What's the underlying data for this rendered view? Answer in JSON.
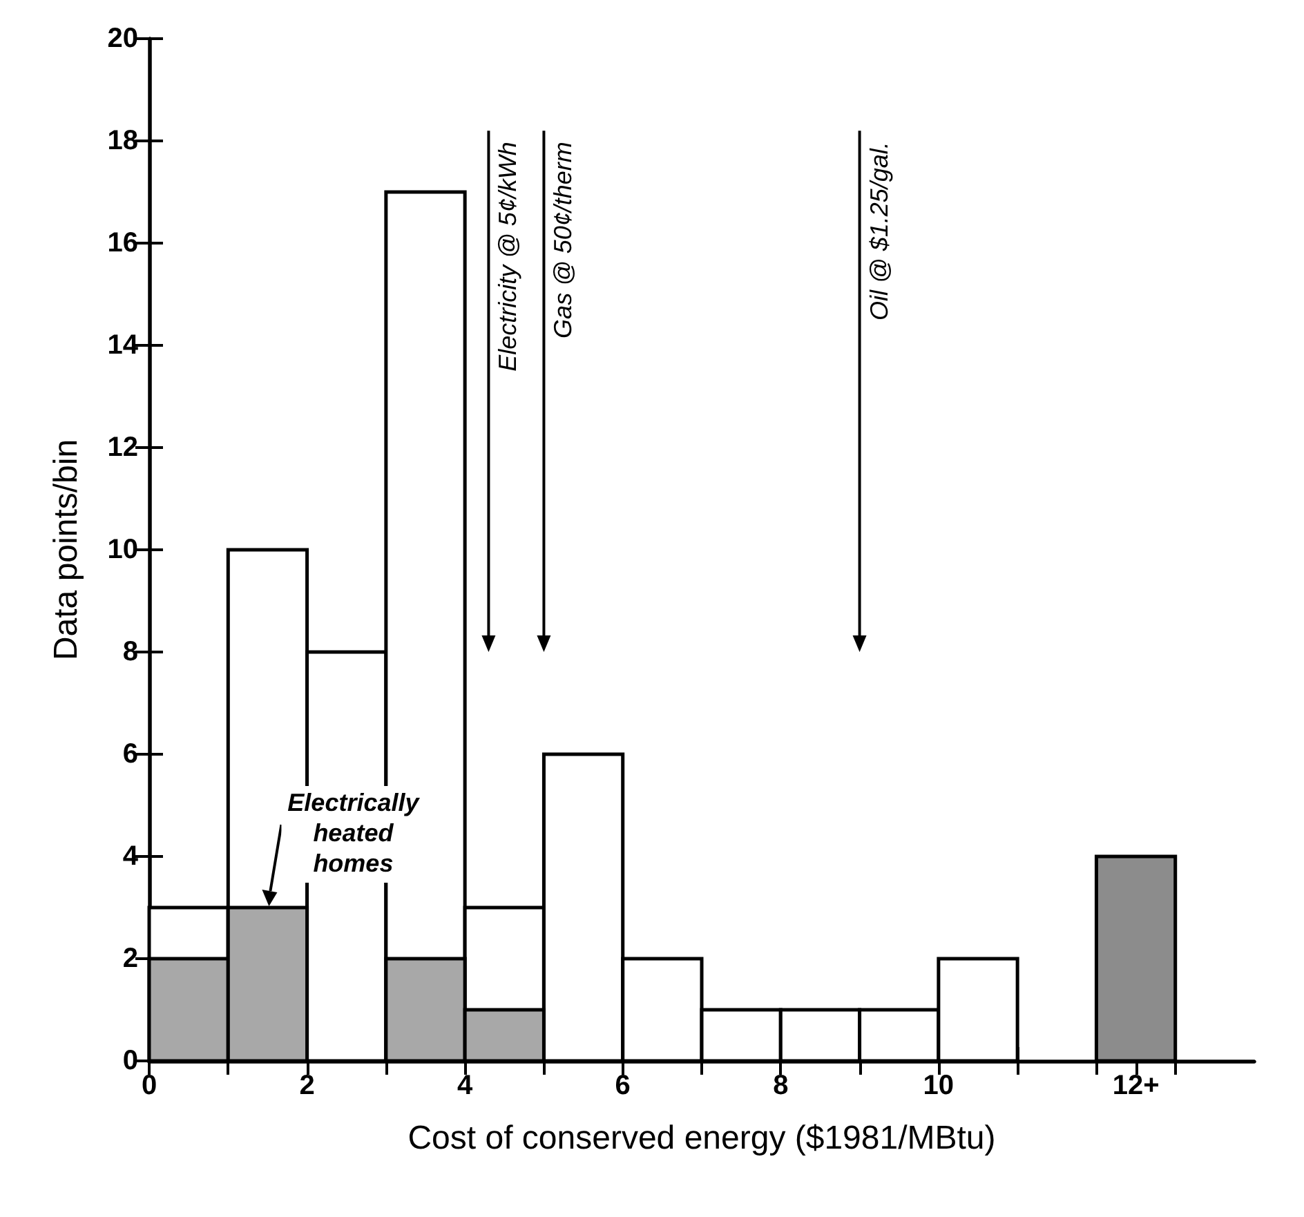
{
  "chart_data": {
    "type": "histogram",
    "xlabel": "Cost of conserved energy ($1981/MBtu)",
    "ylabel": "Data points/bin",
    "bins": [
      0,
      1,
      2,
      3,
      4,
      5,
      6,
      7,
      8,
      9,
      10,
      11,
      12,
      13
    ],
    "series": [
      {
        "color": "#ffffff",
        "values": [
          3,
          10,
          8,
          17,
          3,
          6,
          2,
          1,
          1,
          1,
          2,
          0,
          null
        ]
      },
      {
        "color": "#a8a8a8",
        "values": [
          2,
          3,
          0,
          2,
          1,
          0,
          0,
          0,
          0,
          0,
          0,
          0,
          0
        ]
      },
      {
        "color": "#8c8c8c",
        "values": [
          null,
          null,
          null,
          null,
          null,
          null,
          null,
          null,
          null,
          null,
          null,
          null,
          4
        ]
      }
    ],
    "xlim": [
      0,
      14
    ],
    "ylim": [
      0,
      20
    ],
    "xticks": [
      0,
      {
        "value": 1,
        "label": null
      },
      2,
      {
        "value": 3,
        "label": null
      },
      4,
      {
        "value": 5,
        "label": null
      },
      6,
      {
        "value": 7,
        "label": null
      },
      8,
      {
        "value": 9,
        "label": null
      },
      10,
      {
        "value": 11,
        "label": null
      },
      {
        "value": 12,
        "label": null
      },
      {
        "value": 12.5,
        "label": "12+"
      },
      {
        "value": 13,
        "label": null
      }
    ],
    "yticks": [
      0,
      2,
      4,
      6,
      8,
      10,
      12,
      14,
      16,
      18,
      20
    ],
    "ref_lines": [
      {
        "axis": "x",
        "value": 4.3,
        "label": "Electricity @ 5¢/kWh"
      },
      {
        "axis": "x",
        "value": 5,
        "label": "Gas @ 50¢/therm"
      },
      {
        "axis": "x",
        "value": 9,
        "label": "Oil @ $1.25/gal."
      }
    ],
    "annotations": [
      {
        "text": "Electrically heated homes",
        "x": 1.5,
        "y": 3
      }
    ],
    "grid": false
  }
}
